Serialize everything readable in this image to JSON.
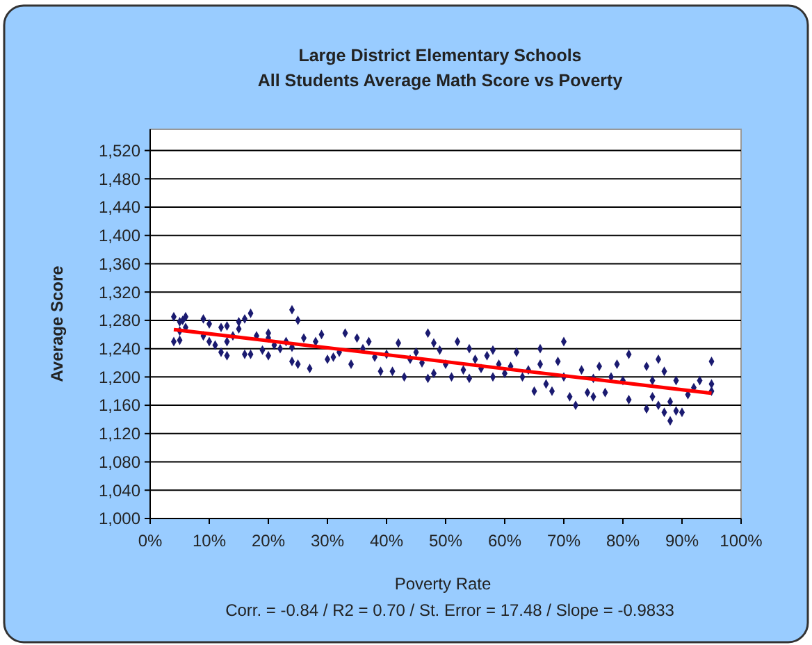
{
  "chart_data": {
    "type": "scatter",
    "title": "Large District Elementary Schools\nAll Students Average Math Score vs Poverty",
    "xlabel": "Poverty Rate",
    "ylabel": "Average Score",
    "annotations": [
      "Corr. = -0.84 / R2 = 0.70 / St. Error = 17.48 / Slope = -0.9833"
    ],
    "xlim": [
      0,
      100
    ],
    "xticks": [
      {
        "value": 0,
        "label": "0%"
      },
      {
        "value": 10,
        "label": "10%"
      },
      {
        "value": 20,
        "label": "20%"
      },
      {
        "value": 30,
        "label": "30%"
      },
      {
        "value": 40,
        "label": "40%"
      },
      {
        "value": 50,
        "label": "50%"
      },
      {
        "value": 60,
        "label": "60%"
      },
      {
        "value": 70,
        "label": "70%"
      },
      {
        "value": 80,
        "label": "80%"
      },
      {
        "value": 90,
        "label": "90%"
      },
      {
        "value": 100,
        "label": "100%"
      }
    ],
    "ylim": [
      1000,
      1550
    ],
    "yticks": [
      {
        "value": 1000,
        "label": "1,000"
      },
      {
        "value": 1040,
        "label": "1,040"
      },
      {
        "value": 1080,
        "label": "1,080"
      },
      {
        "value": 1120,
        "label": "1,120"
      },
      {
        "value": 1160,
        "label": "1,160"
      },
      {
        "value": 1200,
        "label": "1,200"
      },
      {
        "value": 1240,
        "label": "1,240"
      },
      {
        "value": 1280,
        "label": "1,280"
      },
      {
        "value": 1320,
        "label": "1,320"
      },
      {
        "value": 1360,
        "label": "1,360"
      },
      {
        "value": 1400,
        "label": "1,400"
      },
      {
        "value": 1440,
        "label": "1,440"
      },
      {
        "value": 1480,
        "label": "1,480"
      },
      {
        "value": 1520,
        "label": "1,520"
      }
    ],
    "grid": "y",
    "series": [
      {
        "marker": "diamond",
        "color": "#1a1a70",
        "x": [
          4,
          4,
          5,
          5,
          5,
          6,
          6,
          5.5,
          9,
          9,
          10,
          10,
          11,
          12,
          12,
          13,
          13,
          13,
          14,
          15,
          15,
          16,
          16,
          17,
          17,
          18,
          19,
          20,
          20,
          20,
          21,
          22,
          23,
          24,
          24,
          25,
          24,
          25,
          26,
          27,
          28,
          29,
          30,
          31,
          32,
          33,
          34,
          35,
          36,
          37,
          38,
          39,
          40,
          41,
          42,
          43,
          44,
          45,
          46,
          47,
          47,
          48,
          48,
          49,
          50,
          51,
          52,
          53,
          54,
          54,
          55,
          56,
          57,
          58,
          58,
          59,
          60,
          61,
          62,
          63,
          64,
          65,
          66,
          66,
          67,
          68,
          69,
          70,
          70,
          71,
          72,
          73,
          74,
          75,
          75,
          76,
          77,
          78,
          79,
          80,
          81,
          81,
          84,
          84,
          85,
          85,
          86,
          86,
          87,
          87,
          88,
          88,
          89,
          89,
          90,
          91,
          92,
          93,
          95,
          95,
          95
        ],
        "values": [
          1250,
          1285,
          1265,
          1278,
          1252,
          1285,
          1270,
          1280,
          1282,
          1258,
          1275,
          1250,
          1245,
          1270,
          1235,
          1272,
          1230,
          1250,
          1258,
          1278,
          1268,
          1282,
          1232,
          1290,
          1232,
          1258,
          1238,
          1255,
          1230,
          1262,
          1245,
          1240,
          1250,
          1242,
          1295,
          1280,
          1222,
          1218,
          1255,
          1212,
          1250,
          1260,
          1225,
          1228,
          1235,
          1262,
          1218,
          1255,
          1240,
          1250,
          1228,
          1208,
          1232,
          1208,
          1248,
          1200,
          1225,
          1235,
          1220,
          1262,
          1198,
          1248,
          1205,
          1238,
          1218,
          1200,
          1250,
          1210,
          1240,
          1198,
          1225,
          1212,
          1230,
          1200,
          1238,
          1218,
          1205,
          1215,
          1235,
          1200,
          1210,
          1180,
          1240,
          1218,
          1190,
          1180,
          1222,
          1200,
          1250,
          1172,
          1160,
          1210,
          1178,
          1198,
          1172,
          1215,
          1178,
          1200,
          1218,
          1195,
          1232,
          1168,
          1155,
          1215,
          1172,
          1195,
          1160,
          1225,
          1208,
          1150,
          1138,
          1165,
          1195,
          1152,
          1150,
          1175,
          1185,
          1195,
          1222,
          1190,
          1180
        ]
      },
      {
        "type": "line",
        "marker": "none",
        "color": "#ff0000",
        "x": [
          4,
          95
        ],
        "values": [
          1267,
          1177
        ]
      }
    ]
  }
}
